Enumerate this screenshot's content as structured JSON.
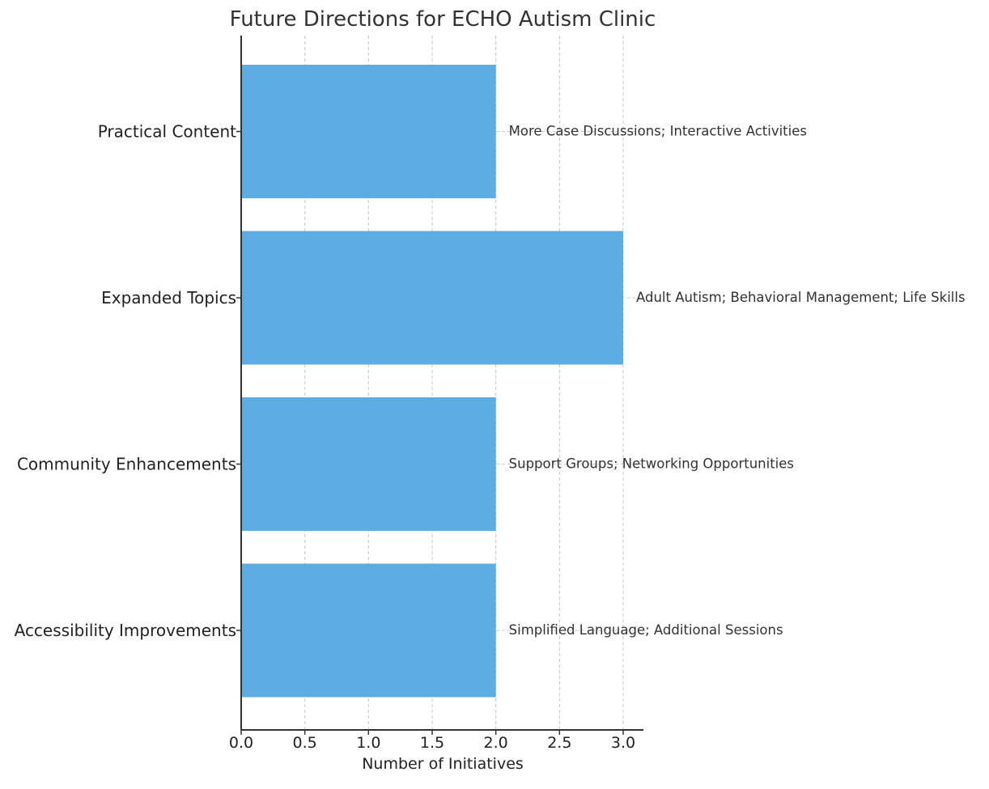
{
  "chart_data": {
    "type": "bar",
    "orientation": "horizontal",
    "title": "Future Directions for ECHO Autism Clinic",
    "xlabel": "Number of Initiatives",
    "ylabel": "",
    "categories": [
      "Practical Content",
      "Expanded Topics",
      "Community Enhancements",
      "Accessibility Improvements"
    ],
    "values": [
      2,
      3,
      2,
      2
    ],
    "annotations": [
      "More Case Discussions; Interactive Activities",
      "Adult Autism; Behavioral Management; Life Skills",
      "Support Groups; Networking Opportunities",
      "Simplified Language; Additional Sessions"
    ],
    "xlim": [
      0,
      3.15
    ],
    "xticks": [
      "0.0",
      "0.5",
      "1.0",
      "1.5",
      "2.0",
      "2.5",
      "3.0"
    ],
    "grid": true,
    "bar_color": "#5DADE2"
  }
}
